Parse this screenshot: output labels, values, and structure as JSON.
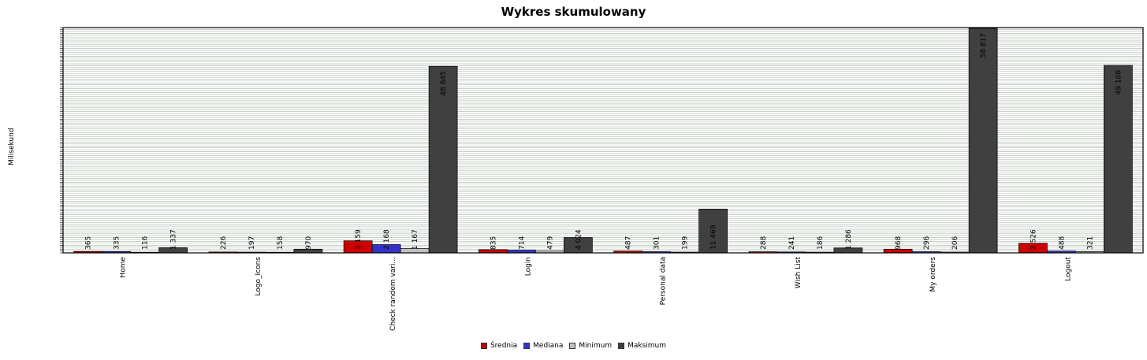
{
  "chart_data": {
    "type": "bar",
    "title": "Wykres skumulowany",
    "ylabel": "Milisekund",
    "ylim": [
      0,
      59000
    ],
    "grid": true,
    "legend_position": "bottom",
    "categories": [
      "Home",
      "Logo_Icons",
      "Check random vari...",
      "Login",
      "Personal data",
      "Wish List",
      "My orders",
      "Logout"
    ],
    "series": [
      {
        "name": "Średnia",
        "color": "#cc0000",
        "values": [
          365,
          226,
          3159,
          835,
          487,
          288,
          968,
          2526
        ],
        "labels": [
          "365",
          "226",
          "3 159",
          "835",
          "487",
          "288",
          "968",
          "2 526"
        ]
      },
      {
        "name": "Mediana",
        "color": "#3333cc",
        "values": [
          335,
          197,
          2168,
          714,
          301,
          241,
          296,
          488
        ],
        "labels": [
          "335",
          "197",
          "2 168",
          "714",
          "301",
          "241",
          "296",
          "488"
        ]
      },
      {
        "name": "Minimum",
        "color": "#c0c0c0",
        "values": [
          116,
          158,
          1167,
          479,
          199,
          186,
          206,
          321
        ],
        "labels": [
          "116",
          "158",
          "1 167",
          "479",
          "199",
          "186",
          "206",
          "321"
        ]
      },
      {
        "name": "Maksimum",
        "color": "#404040",
        "values": [
          1337,
          970,
          48845,
          4024,
          11469,
          1286,
          58817,
          49108
        ],
        "labels": [
          "1 337",
          "970",
          "48 845",
          "4 024",
          "11 469",
          "1 286",
          "58 817",
          "49 108"
        ]
      }
    ]
  }
}
